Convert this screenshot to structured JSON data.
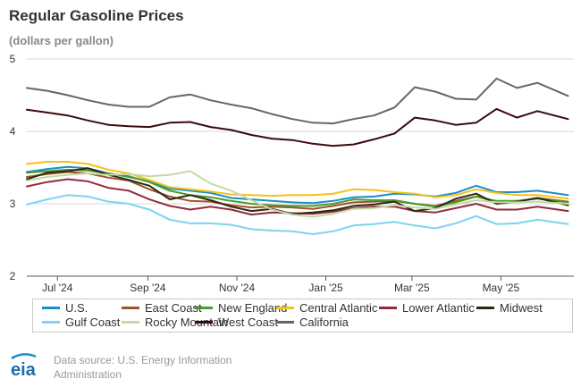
{
  "header": {
    "title": "Regular Gasoline Prices",
    "subtitle": "(dollars per gallon)"
  },
  "footer": {
    "logo_text": "eia",
    "source_line1": "Data source: U.S. Energy Information",
    "source_line2": "Administration"
  },
  "chart_data": {
    "type": "line",
    "title": "Regular Gasoline Prices",
    "ylabel": "(dollars per gallon)",
    "ylim": [
      2,
      5
    ],
    "yticks": [
      2,
      3,
      4,
      5
    ],
    "x_ticks": [
      {
        "label": "Jul '24",
        "date": "2024-07-01"
      },
      {
        "label": "Sep '24",
        "date": "2024-09-01"
      },
      {
        "label": "Nov '24",
        "date": "2024-11-01"
      },
      {
        "label": "Jan '25",
        "date": "2025-01-01"
      },
      {
        "label": "Mar '25",
        "date": "2025-03-01"
      },
      {
        "label": "May '25",
        "date": "2025-05-01"
      }
    ],
    "xlim": [
      "2024-06-10",
      "2025-06-20"
    ],
    "x": [
      "2024-06-10",
      "2024-06-24",
      "2024-07-08",
      "2024-07-22",
      "2024-08-05",
      "2024-08-19",
      "2024-09-02",
      "2024-09-16",
      "2024-09-30",
      "2024-10-14",
      "2024-10-28",
      "2024-11-11",
      "2024-11-25",
      "2024-12-09",
      "2024-12-23",
      "2025-01-06",
      "2025-01-20",
      "2025-02-03",
      "2025-02-17",
      "2025-03-03",
      "2025-03-17",
      "2025-03-31",
      "2025-04-14",
      "2025-04-28",
      "2025-05-12",
      "2025-05-26",
      "2025-06-16"
    ],
    "legend_position": "bottom",
    "grid": "horizontal",
    "series": [
      {
        "name": "U.S.",
        "color": "#1a8fc9",
        "values": [
          3.44,
          3.48,
          3.51,
          3.49,
          3.42,
          3.37,
          3.31,
          3.21,
          3.18,
          3.15,
          3.08,
          3.06,
          3.04,
          3.02,
          3.01,
          3.04,
          3.09,
          3.1,
          3.14,
          3.13,
          3.1,
          3.15,
          3.25,
          3.16,
          3.16,
          3.18,
          3.12
        ]
      },
      {
        "name": "East Coast",
        "color": "#a0522d",
        "values": [
          3.37,
          3.41,
          3.44,
          3.42,
          3.36,
          3.32,
          3.2,
          3.1,
          3.04,
          3.03,
          2.98,
          2.95,
          2.96,
          2.95,
          2.93,
          2.97,
          3.02,
          3.03,
          3.04,
          3.0,
          2.97,
          3.04,
          3.1,
          3.03,
          3.03,
          3.08,
          3.03
        ]
      },
      {
        "name": "New England",
        "color": "#4b9b2a",
        "values": [
          3.43,
          3.45,
          3.47,
          3.46,
          3.42,
          3.38,
          3.3,
          3.18,
          3.12,
          3.09,
          3.04,
          3.0,
          2.98,
          2.97,
          2.97,
          3.0,
          3.06,
          3.05,
          3.05,
          3.0,
          2.96,
          3.02,
          3.1,
          3.04,
          3.04,
          3.07,
          3.02
        ]
      },
      {
        "name": "Central Atlantic",
        "color": "#f5c219",
        "values": [
          3.55,
          3.58,
          3.58,
          3.55,
          3.47,
          3.42,
          3.33,
          3.23,
          3.2,
          3.17,
          3.13,
          3.12,
          3.11,
          3.12,
          3.12,
          3.14,
          3.2,
          3.19,
          3.16,
          3.14,
          3.09,
          3.12,
          3.2,
          3.15,
          3.12,
          3.12,
          3.07
        ]
      },
      {
        "name": "Lower Atlantic",
        "color": "#922b3e",
        "values": [
          3.24,
          3.3,
          3.34,
          3.31,
          3.22,
          3.18,
          3.06,
          2.97,
          2.92,
          2.96,
          2.92,
          2.85,
          2.88,
          2.87,
          2.86,
          2.89,
          2.94,
          2.96,
          2.96,
          2.9,
          2.88,
          2.94,
          3.0,
          2.92,
          2.92,
          2.96,
          2.9
        ]
      },
      {
        "name": "Midwest",
        "color": "#2d2a10",
        "values": [
          3.34,
          3.43,
          3.45,
          3.49,
          3.4,
          3.33,
          3.25,
          3.06,
          3.12,
          3.05,
          2.96,
          2.9,
          2.93,
          2.86,
          2.88,
          2.91,
          2.97,
          2.99,
          3.03,
          2.9,
          2.94,
          3.07,
          3.14,
          3.0,
          3.03,
          3.08,
          2.98
        ]
      },
      {
        "name": "Gulf Coast",
        "color": "#7dd3f0",
        "values": [
          2.99,
          3.06,
          3.12,
          3.1,
          3.03,
          3.0,
          2.92,
          2.78,
          2.73,
          2.73,
          2.71,
          2.65,
          2.63,
          2.62,
          2.58,
          2.62,
          2.7,
          2.72,
          2.75,
          2.7,
          2.66,
          2.73,
          2.83,
          2.72,
          2.73,
          2.78,
          2.72
        ]
      },
      {
        "name": "Rocky Mountain",
        "color": "#c5d9a6",
        "values": [
          3.32,
          3.37,
          3.4,
          3.42,
          3.4,
          3.41,
          3.38,
          3.4,
          3.45,
          3.28,
          3.18,
          3.05,
          2.92,
          2.85,
          2.82,
          2.86,
          2.93,
          2.94,
          2.98,
          2.95,
          2.93,
          2.99,
          3.05,
          3.02,
          3.02,
          3.03,
          3.0
        ]
      },
      {
        "name": "West Coast",
        "color": "#3b0a0a",
        "values": [
          4.3,
          4.26,
          4.22,
          4.15,
          4.09,
          4.07,
          4.06,
          4.12,
          4.13,
          4.06,
          4.02,
          3.95,
          3.9,
          3.88,
          3.83,
          3.8,
          3.82,
          3.89,
          3.97,
          4.19,
          4.15,
          4.09,
          4.12,
          4.31,
          4.19,
          4.28,
          4.17
        ]
      },
      {
        "name": "California",
        "color": "#666666",
        "values": [
          4.6,
          4.56,
          4.5,
          4.43,
          4.37,
          4.34,
          4.34,
          4.47,
          4.51,
          4.43,
          4.37,
          4.32,
          4.24,
          4.17,
          4.12,
          4.11,
          4.17,
          4.22,
          4.33,
          4.61,
          4.55,
          4.45,
          4.44,
          4.73,
          4.6,
          4.67,
          4.49
        ]
      }
    ]
  }
}
